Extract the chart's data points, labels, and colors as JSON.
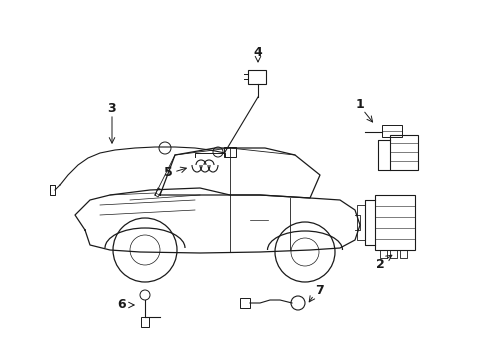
{
  "background_color": "#ffffff",
  "line_color": "#1a1a1a",
  "text_color": "#1a1a1a",
  "fig_width": 4.89,
  "fig_height": 3.6,
  "dpi": 100
}
